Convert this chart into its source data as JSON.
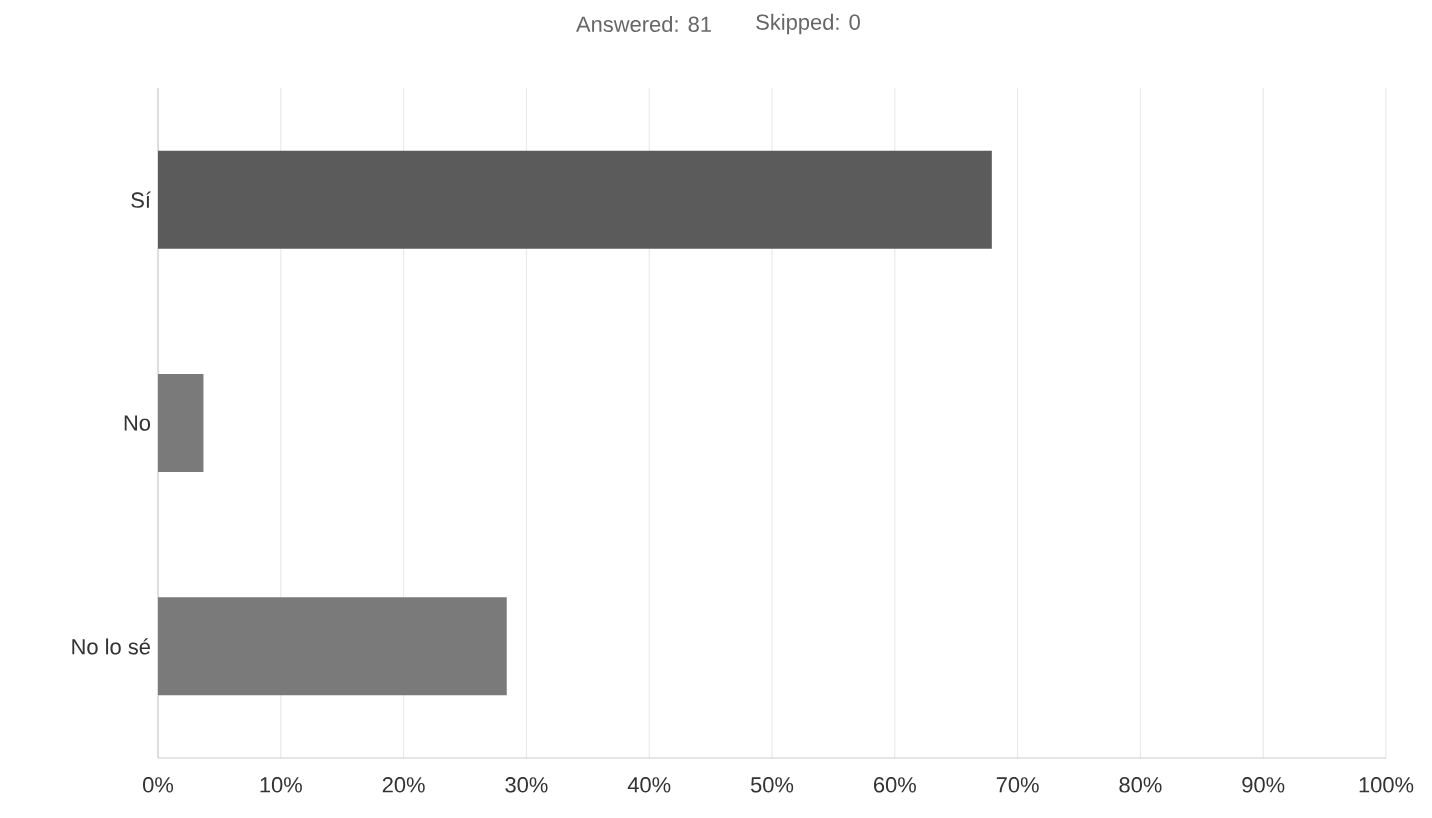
{
  "chart_data": {
    "type": "bar",
    "orientation": "horizontal",
    "annotations": [
      "Answered: 81",
      "Skipped: 0"
    ],
    "categories": [
      "Sí",
      "No",
      "No lo sé"
    ],
    "values": [
      67.9,
      3.7,
      28.4
    ],
    "colors": [
      "#5b5b5b",
      "#7a7a7a",
      "#7a7a7a"
    ],
    "xlim": [
      0,
      100
    ],
    "xticks": [
      {
        "value": 0,
        "label": "0%"
      },
      {
        "value": 10,
        "label": "10%"
      },
      {
        "value": 20,
        "label": "20%"
      },
      {
        "value": 30,
        "label": "30%"
      },
      {
        "value": 40,
        "label": "40%"
      },
      {
        "value": 50,
        "label": "50%"
      },
      {
        "value": 60,
        "label": "60%"
      },
      {
        "value": 70,
        "label": "70%"
      },
      {
        "value": 80,
        "label": "80%"
      },
      {
        "value": 90,
        "label": "90%"
      },
      {
        "value": 100,
        "label": "100%"
      }
    ],
    "grid": "x"
  }
}
